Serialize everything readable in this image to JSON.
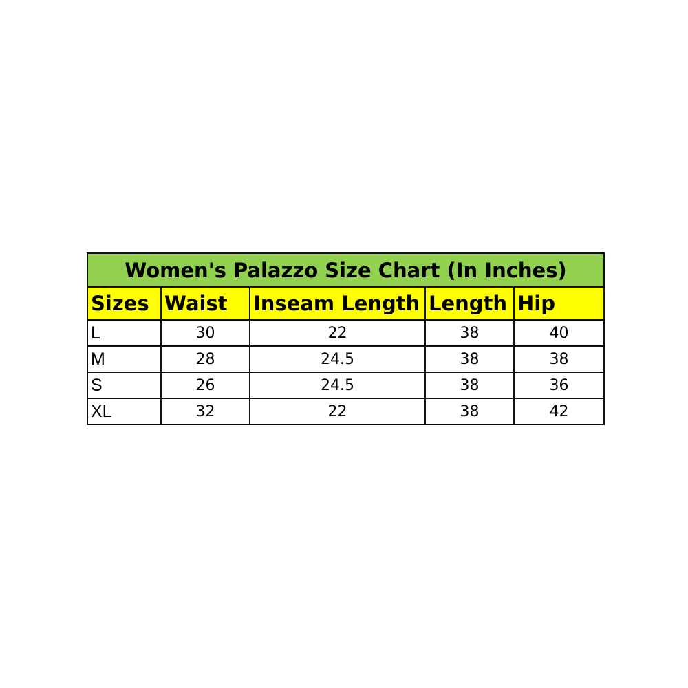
{
  "title": "Women's Palazzo Size Chart (In Inches)",
  "headers": [
    "Sizes",
    "Waist",
    "Inseam Length",
    "Length",
    "Hip"
  ],
  "rows": [
    [
      "L",
      "30",
      "22",
      "38",
      "40"
    ],
    [
      "M",
      "28",
      "24.5",
      "38",
      "38"
    ],
    [
      "S",
      "26",
      "24.5",
      "38",
      "36"
    ],
    [
      "XL",
      "32",
      "22",
      "38",
      "42"
    ]
  ],
  "colors": {
    "title_bg": "#92d050",
    "header_bg": "#ffff00"
  }
}
